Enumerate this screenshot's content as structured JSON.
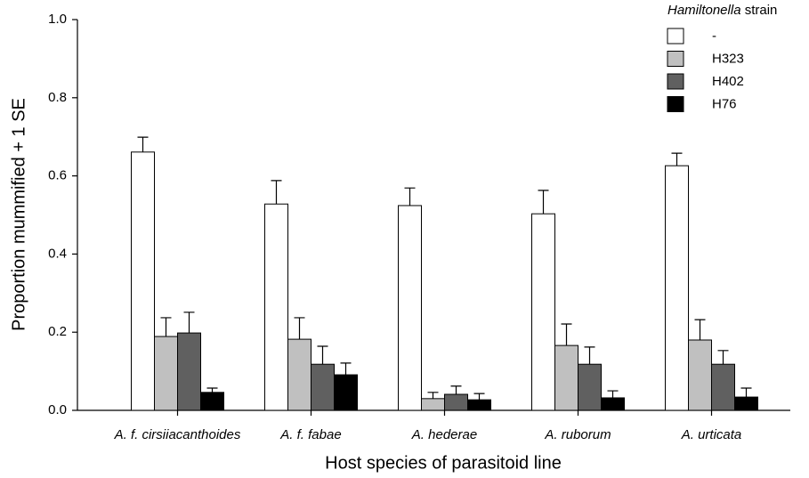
{
  "chart_data": {
    "type": "bar",
    "y_label": "Proportion mummified + 1 SE",
    "x_label": "Host species of parasitoid line",
    "legend_title": [
      "Hamiltonella",
      "strain"
    ],
    "legend_position": "upper right",
    "categories": [
      "A. f. cirsiiacanthoides",
      "A. f. fabae",
      "A. hederae",
      "A. ruborum",
      "A. urticata"
    ],
    "series": [
      {
        "name": "-",
        "color": "#ffffff",
        "values": [
          0.661,
          0.528,
          0.524,
          0.503,
          0.626
        ],
        "errors": [
          0.038,
          0.06,
          0.045,
          0.06,
          0.032
        ]
      },
      {
        "name": "H323",
        "color": "#c0c0c0",
        "values": [
          0.189,
          0.182,
          0.03,
          0.166,
          0.18
        ],
        "errors": [
          0.048,
          0.055,
          0.016,
          0.055,
          0.052
        ]
      },
      {
        "name": "H402",
        "color": "#606060",
        "values": [
          0.198,
          0.118,
          0.041,
          0.118,
          0.118
        ],
        "errors": [
          0.053,
          0.046,
          0.021,
          0.044,
          0.035
        ]
      },
      {
        "name": "H76",
        "color": "#000000",
        "values": [
          0.046,
          0.091,
          0.027,
          0.032,
          0.034
        ],
        "errors": [
          0.011,
          0.03,
          0.016,
          0.018,
          0.023
        ]
      }
    ],
    "ylim": [
      0,
      1
    ],
    "yticks": [
      {
        "value": 0,
        "label": "0.0"
      },
      0.2,
      0.4,
      0.6,
      0.8,
      {
        "value": 1,
        "label": "1.0"
      }
    ]
  }
}
